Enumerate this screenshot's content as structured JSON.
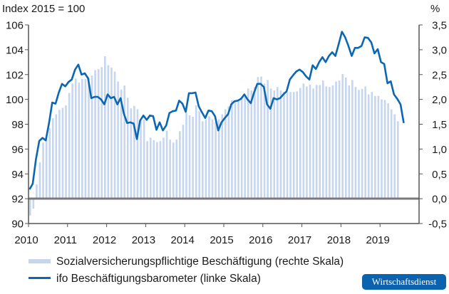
{
  "chart_data": {
    "type": "bar+line",
    "left_axis_title": "Index 2015 = 100",
    "right_axis_title": "%",
    "left_ylim": [
      90,
      106
    ],
    "right_ylim": [
      -0.5,
      3.5
    ],
    "left_ticks": [
      "90",
      "92",
      "94",
      "96",
      "98",
      "100",
      "102",
      "104",
      "106"
    ],
    "right_ticks": [
      "-0,5",
      "0,0",
      "0,5",
      "1,0",
      "1,5",
      "2,0",
      "2,5",
      "3,0",
      "3,5"
    ],
    "x_ticks": [
      "2010",
      "2011",
      "2012",
      "2013",
      "2014",
      "2015",
      "2016",
      "2017",
      "2018",
      "2019"
    ],
    "x_start": "2010-01",
    "frequency": "monthly",
    "grid": false,
    "legend_placement": "bottom",
    "colors": {
      "bars": "#c6d6ef",
      "line": "#0b67b2",
      "zero_line": "#7a7a7a",
      "axis": "#555555"
    },
    "series": [
      {
        "name": "Sozialversicherungspflichtige Beschäftigung (rechte Skala)",
        "type": "bar",
        "axis": "right",
        "values": [
          -0.34,
          -0.2,
          0.29,
          0.73,
          1.13,
          1.23,
          1.42,
          1.62,
          1.7,
          1.79,
          1.83,
          1.88,
          2.13,
          2.32,
          2.42,
          2.34,
          2.41,
          2.41,
          2.43,
          2.48,
          2.59,
          2.61,
          2.65,
          2.87,
          2.69,
          2.64,
          2.56,
          2.36,
          2.2,
          2.28,
          2.03,
          1.82,
          1.87,
          1.8,
          1.58,
          1.59,
          1.16,
          1.23,
          1.18,
          1.14,
          1.16,
          1.23,
          1.37,
          1.19,
          1.13,
          1.19,
          1.36,
          1.49,
          1.73,
          1.68,
          1.65,
          1.88,
          1.76,
          1.56,
          1.6,
          1.66,
          1.6,
          1.55,
          1.6,
          1.7,
          1.8,
          1.86,
          1.98,
          1.97,
          1.99,
          2.02,
          2.06,
          2.22,
          2.18,
          2.25,
          2.45,
          2.46,
          2.32,
          2.39,
          2.22,
          2.18,
          2.25,
          2.18,
          2.15,
          2.15,
          2.15,
          2.15,
          2.16,
          2.23,
          2.32,
          2.26,
          2.3,
          2.22,
          2.29,
          2.29,
          2.38,
          2.26,
          2.25,
          2.28,
          2.36,
          2.38,
          2.51,
          2.44,
          2.28,
          2.39,
          2.25,
          2.19,
          2.21,
          2.26,
          2.1,
          2.15,
          2.07,
          2.07,
          2.0,
          1.99,
          1.92,
          1.8,
          1.7,
          1.56
        ]
      },
      {
        "name": "ifo Beschäftigungsbarometer (linke Skala)",
        "type": "line",
        "axis": "left",
        "values": [
          92.75,
          93.2,
          95.2,
          96.65,
          96.9,
          96.7,
          98.1,
          99.75,
          99.65,
          100.55,
          101.25,
          101.05,
          101.4,
          101.6,
          102.4,
          102.8,
          102.0,
          102.1,
          101.7,
          100.1,
          100.2,
          100.2,
          100.0,
          99.6,
          100.4,
          100.1,
          100.2,
          99.6,
          100.1,
          98.85,
          98.1,
          98.15,
          98.05,
          96.8,
          98.3,
          98.7,
          98.35,
          98.7,
          98.65,
          97.55,
          98.15,
          97.5,
          97.9,
          98.9,
          99.05,
          99.1,
          99.9,
          99.65,
          99.0,
          100.5,
          100.5,
          100.55,
          99.45,
          98.95,
          98.5,
          99.1,
          99.05,
          98.65,
          97.5,
          98.15,
          98.5,
          98.8,
          99.6,
          99.85,
          99.9,
          100.05,
          100.4,
          100.0,
          99.7,
          100.55,
          101.25,
          101.25,
          101.0,
          99.6,
          99.25,
          100.1,
          100.0,
          100.1,
          100.4,
          100.65,
          101.6,
          101.95,
          102.25,
          102.4,
          102.2,
          101.85,
          101.6,
          102.75,
          102.45,
          103.0,
          103.4,
          103.0,
          103.5,
          103.8,
          103.5,
          104.45,
          105.45,
          105.0,
          104.3,
          103.5,
          104.15,
          104.15,
          104.3,
          105.0,
          104.95,
          104.6,
          103.7,
          104.05,
          103.0,
          102.85,
          101.3,
          101.45,
          100.4,
          100.05,
          99.6,
          98.1
        ]
      }
    ]
  },
  "badge": "Wirtschaftsdienst"
}
